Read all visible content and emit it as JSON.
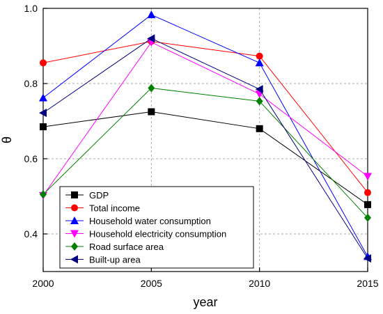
{
  "chart_data": {
    "type": "line",
    "title": "",
    "xlabel": "year",
    "ylabel": "θ",
    "x": [
      2000,
      2005,
      2010,
      2015
    ],
    "x_tick_labels": [
      "2000",
      "2005",
      "2010",
      "2015"
    ],
    "y_tick_labels": [
      "0.4",
      "0.6",
      "0.8",
      "1.0"
    ],
    "y_ticks": [
      0.4,
      0.6,
      0.8,
      1.0
    ],
    "ylim": [
      0.3,
      1.0
    ],
    "grid": true,
    "legend_position": "bottom-left",
    "series": [
      {
        "name": "GDP",
        "color": "#000000",
        "marker": "square",
        "values": [
          0.685,
          0.725,
          0.68,
          0.478
        ]
      },
      {
        "name": "Total income",
        "color": "#ff0000",
        "marker": "circle",
        "values": [
          0.855,
          0.912,
          0.873,
          0.51
        ]
      },
      {
        "name": "Household water consumption",
        "color": "#0000ff",
        "marker": "triangle-up",
        "values": [
          0.762,
          0.983,
          0.855,
          0.34
        ]
      },
      {
        "name": "Household electricity consumption",
        "color": "#ff00ff",
        "marker": "triangle-down",
        "values": [
          0.502,
          0.91,
          0.772,
          0.553
        ]
      },
      {
        "name": "Road surface area",
        "color": "#008000",
        "marker": "diamond",
        "values": [
          0.505,
          0.788,
          0.753,
          0.443
        ]
      },
      {
        "name": "Built-up area",
        "color": "#000080",
        "marker": "triangle-left",
        "values": [
          0.722,
          0.92,
          0.785,
          0.335
        ]
      }
    ]
  }
}
